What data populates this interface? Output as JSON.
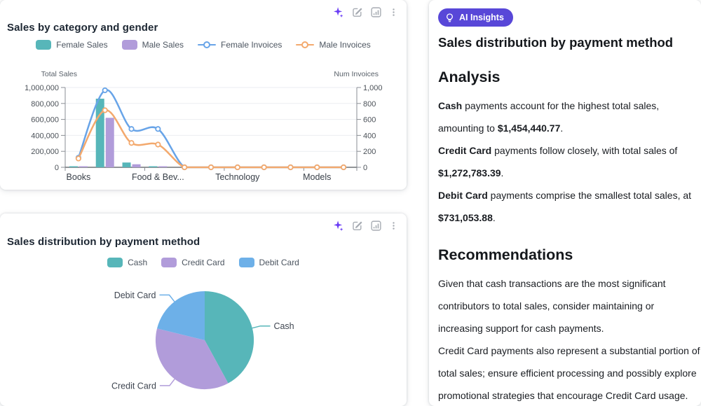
{
  "accent_colors": {
    "ai_purple": "#6a3cf5",
    "badge_bg": "#5847d8",
    "icon_gray": "#a6abb2"
  },
  "cards": {
    "combo": {
      "title": "Sales by category and gender"
    },
    "pie": {
      "title": "Sales distribution by payment method"
    }
  },
  "chart_data": [
    {
      "type": "bar+line-combo",
      "categories": [
        "Books",
        "",
        "",
        "Food & Bev...",
        "",
        "",
        "Technology",
        "",
        "",
        "Models",
        ""
      ],
      "series": [
        {
          "name": "Female Sales",
          "type": "bar",
          "axis": "left",
          "color": "#57b6b9",
          "values": [
            3000,
            860000,
            60000,
            6000,
            0,
            0,
            0,
            0,
            0,
            0,
            0
          ]
        },
        {
          "name": "Male Sales",
          "type": "bar",
          "axis": "left",
          "color": "#b19cda",
          "values": [
            2000,
            620000,
            38000,
            3000,
            0,
            0,
            0,
            0,
            0,
            0,
            0
          ]
        },
        {
          "name": "Female Invoices",
          "type": "line",
          "axis": "right",
          "color": "#68a4e8",
          "values": [
            120,
            965,
            480,
            480,
            0,
            0,
            0,
            0,
            0,
            0,
            0
          ]
        },
        {
          "name": "Male Invoices",
          "type": "line",
          "axis": "right",
          "color": "#f3a96d",
          "values": [
            110,
            715,
            305,
            285,
            0,
            0,
            0,
            0,
            0,
            0,
            0
          ]
        }
      ],
      "left_axis": {
        "name": "Total Sales",
        "min": 0,
        "max": 1000000,
        "step": 200000
      },
      "right_axis": {
        "name": "Num Invoices",
        "min": 0,
        "max": 1000,
        "step": 200
      },
      "grid": true,
      "legend_position": "top"
    },
    {
      "type": "pie",
      "title": "Sales distribution by payment method",
      "labels": [
        "Cash",
        "Credit Card",
        "Debit Card"
      ],
      "values": [
        1454440.77,
        1272783.39,
        731053.88
      ],
      "colors": [
        "#57b6b9",
        "#b19cda",
        "#6db0e8"
      ],
      "start_angle": "top",
      "direction": "clockwise",
      "legend_position": "top"
    }
  ],
  "insights": {
    "badge_label": "AI Insights",
    "title": "Sales distribution by payment method",
    "sections": [
      {
        "heading": "Analysis",
        "paragraphs": [
          [
            {
              "t": "Cash",
              "b": true
            },
            {
              "t": " payments account for the highest total sales, amounting to ",
              "b": false
            },
            {
              "t": "$1,454,440.77",
              "b": true
            },
            {
              "t": ".",
              "b": false
            }
          ],
          [
            {
              "t": "Credit Card",
              "b": true
            },
            {
              "t": " payments follow closely, with total sales of ",
              "b": false
            },
            {
              "t": "$1,272,783.39",
              "b": true
            },
            {
              "t": ".",
              "b": false
            }
          ],
          [
            {
              "t": "Debit Card",
              "b": true
            },
            {
              "t": " payments comprise the smallest total sales, at ",
              "b": false
            },
            {
              "t": "$731,053.88",
              "b": true
            },
            {
              "t": ".",
              "b": false
            }
          ]
        ]
      },
      {
        "heading": "Recommendations",
        "paragraphs": [
          [
            {
              "t": "Given that cash transactions are the most significant contributors to total sales, consider maintaining or increasing support for cash payments.",
              "b": false
            }
          ],
          [
            {
              "t": "Credit Card payments also represent a substantial portion of total sales; ensure efficient processing and possibly explore promotional strategies that encourage Credit Card usage.",
              "b": false
            }
          ]
        ]
      }
    ]
  }
}
